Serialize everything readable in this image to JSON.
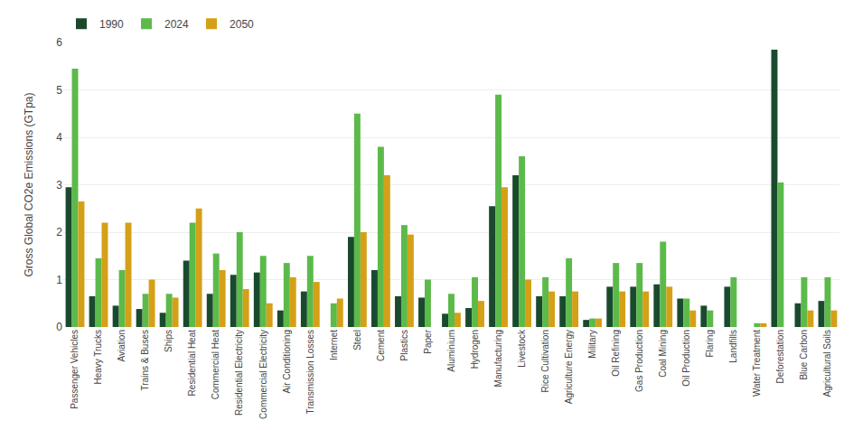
{
  "chart_data": {
    "type": "bar",
    "categories": [
      "Passenger Vehicles",
      "Heavy Trucks",
      "Aviation",
      "Trains & Buses",
      "Ships",
      "Residential Heat",
      "Commercial Heat",
      "Residential Electricity",
      "Commercial Electricity",
      "Air Conditioning",
      "Transmission Losses",
      "Internet",
      "Steel",
      "Cement",
      "Plastics",
      "Paper",
      "Aluminium",
      "Hydrogen",
      "Manufacturing",
      "Livestock",
      "Rice Cultivation",
      "Agriculture Energy",
      "Military",
      "Oil Refining",
      "Gas Production",
      "Coal Mining",
      "Oil Production",
      "Flaring",
      "Landfills",
      "Water Treatment",
      "Deforestation",
      "Blue Carbon",
      "Agricultural Soils"
    ],
    "series": [
      {
        "name": "1990",
        "color": "#1a4a2e",
        "values": [
          2.95,
          0.65,
          0.45,
          0.38,
          0.3,
          1.4,
          0.7,
          1.1,
          1.15,
          0.35,
          0.75,
          0.0,
          1.9,
          1.2,
          0.65,
          0.62,
          0.28,
          0.4,
          2.55,
          3.2,
          0.65,
          0.65,
          0.15,
          0.85,
          0.85,
          0.9,
          0.6,
          0.45,
          0.85,
          0.0,
          5.85,
          0.5,
          0.55
        ]
      },
      {
        "name": "2024",
        "color": "#5cba4a",
        "values": [
          5.45,
          1.45,
          1.2,
          0.7,
          0.7,
          2.2,
          1.55,
          2.0,
          1.5,
          1.35,
          1.5,
          0.5,
          4.5,
          3.8,
          2.15,
          1.0,
          0.7,
          1.05,
          4.9,
          3.6,
          1.05,
          1.45,
          0.18,
          1.35,
          1.35,
          1.8,
          0.6,
          0.35,
          1.05,
          0.08,
          3.05,
          1.05,
          1.05
        ]
      },
      {
        "name": "2050",
        "color": "#d4a017",
        "values": [
          2.65,
          2.2,
          2.2,
          1.0,
          0.62,
          2.5,
          1.2,
          0.8,
          0.5,
          1.05,
          0.95,
          0.6,
          2.0,
          3.2,
          1.95,
          0.0,
          0.3,
          0.55,
          2.95,
          1.0,
          0.75,
          0.75,
          0.18,
          0.75,
          0.75,
          0.85,
          0.35,
          0.0,
          0.0,
          0.08,
          0.0,
          0.35,
          0.35
        ]
      }
    ],
    "ylabel": "Gross Global CO2e Emissions (GTpa)",
    "ylim": [
      0,
      6
    ],
    "yticks": [
      0,
      1,
      2,
      3,
      4,
      5,
      6
    ],
    "grid": true,
    "legend": "upper left"
  }
}
